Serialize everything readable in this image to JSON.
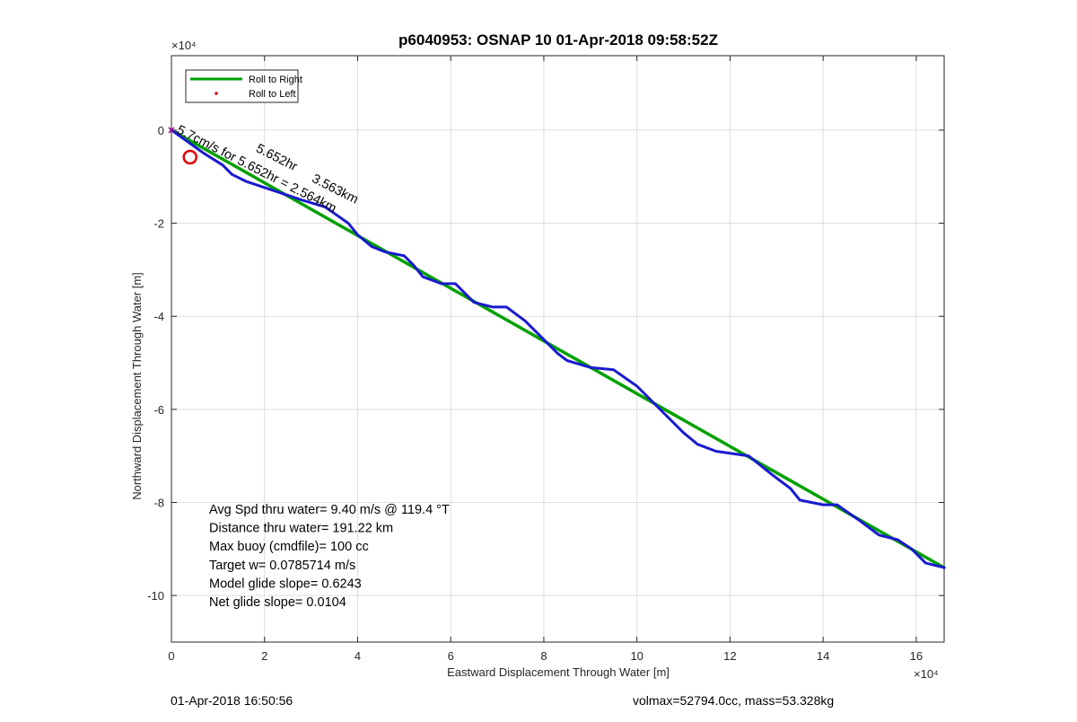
{
  "chart_data": {
    "type": "line",
    "title": "p6040953: OSNAP 10 01-Apr-2018 09:58:52Z",
    "xlabel": "Eastward Displacement Through Water [m]",
    "ylabel": "Northward Displacement Through Water [m]",
    "x_exponent_label": "×10⁴",
    "y_exponent_label": "×10⁴",
    "xlim": [
      0,
      16.6
    ],
    "ylim": [
      -11,
      1.6
    ],
    "scale_factor": 10000,
    "grid": true,
    "legend_position": "top-left",
    "xticks": [
      0,
      2,
      4,
      6,
      8,
      10,
      12,
      14,
      16
    ],
    "xtick_labels": [
      "0",
      "2",
      "4",
      "6",
      "8",
      "10",
      "12",
      "14",
      "16"
    ],
    "yticks": [
      0,
      -2,
      -4,
      -6,
      -8,
      -10
    ],
    "ytick_labels": [
      "0",
      "-2",
      "-4",
      "-6",
      "-8",
      "-10"
    ],
    "legend": [
      {
        "label": "Roll to Right",
        "color": "#00a000",
        "style": "line"
      },
      {
        "label": "Roll to Left",
        "color": "#e00000",
        "style": "dot"
      }
    ],
    "series": [
      {
        "name": "",
        "color": "#00a000",
        "points": [
          [
            0,
            0
          ],
          [
            16.6,
            -9.4
          ]
        ]
      },
      {
        "name": "",
        "color": "#1a1ad0",
        "points": [
          [
            0,
            0
          ],
          [
            0.7,
            -0.5
          ],
          [
            1.1,
            -0.75
          ],
          [
            1.3,
            -0.95
          ],
          [
            1.6,
            -1.1
          ],
          [
            2.2,
            -1.3
          ],
          [
            2.8,
            -1.5
          ],
          [
            3.3,
            -1.65
          ],
          [
            3.8,
            -2.0
          ],
          [
            4.0,
            -2.25
          ],
          [
            4.3,
            -2.5
          ],
          [
            4.6,
            -2.62
          ],
          [
            5.0,
            -2.7
          ],
          [
            5.2,
            -2.9
          ],
          [
            5.4,
            -3.15
          ],
          [
            5.8,
            -3.3
          ],
          [
            6.1,
            -3.3
          ],
          [
            6.3,
            -3.5
          ],
          [
            6.5,
            -3.7
          ],
          [
            6.9,
            -3.8
          ],
          [
            7.2,
            -3.8
          ],
          [
            7.6,
            -4.1
          ],
          [
            8.0,
            -4.5
          ],
          [
            8.3,
            -4.8
          ],
          [
            8.5,
            -4.95
          ],
          [
            9.0,
            -5.1
          ],
          [
            9.5,
            -5.15
          ],
          [
            10.0,
            -5.5
          ],
          [
            10.5,
            -6.0
          ],
          [
            11.0,
            -6.5
          ],
          [
            11.3,
            -6.75
          ],
          [
            11.7,
            -6.9
          ],
          [
            12.4,
            -7.0
          ],
          [
            12.9,
            -7.4
          ],
          [
            13.3,
            -7.7
          ],
          [
            13.5,
            -7.95
          ],
          [
            14.0,
            -8.05
          ],
          [
            14.3,
            -8.05
          ],
          [
            14.8,
            -8.4
          ],
          [
            15.2,
            -8.7
          ],
          [
            15.6,
            -8.8
          ],
          [
            15.9,
            -9.0
          ],
          [
            16.2,
            -9.3
          ],
          [
            16.6,
            -9.4
          ]
        ]
      }
    ],
    "markers": [
      {
        "type": "circle",
        "x": 0.4,
        "y": -0.58,
        "color": "#e00000"
      }
    ],
    "path_labels": [
      {
        "text": "5.652hr",
        "x": 1.8,
        "y": -0.45,
        "angle": 27
      },
      {
        "text": "3.563km",
        "x": 3.0,
        "y": -1.1,
        "angle": 27
      },
      {
        "text": "5.7cm/s for 5.652hr = 2.564km",
        "x": 0.1,
        "y": -0.05,
        "angle": 27
      }
    ],
    "annotations": [
      "Avg Spd thru water=  9.40 m/s @ 119.4 °T",
      "Distance thru water= 191.22 km",
      "Max buoy (cmdfile)= 100 cc",
      "Target w= 0.0785714 m/s",
      "Model glide slope= 0.6243",
      "Net glide slope= 0.0104"
    ]
  },
  "footer": {
    "left": "01-Apr-2018 16:50:56",
    "right": "volmax=52794.0cc, mass=53.328kg"
  }
}
